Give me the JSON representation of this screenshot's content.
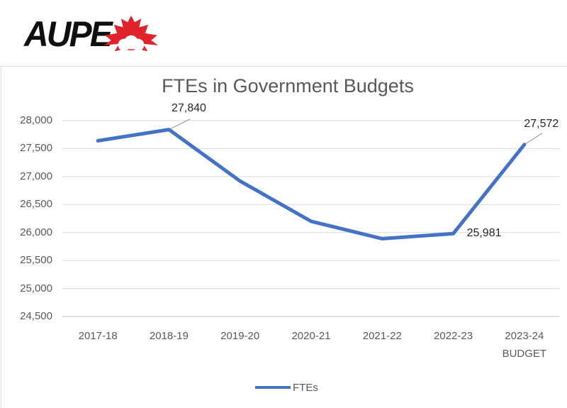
{
  "logo": {
    "text": "AUPE",
    "text_color": "#0f0f0f",
    "leaf_color": "#e0242b"
  },
  "chart_data": {
    "type": "line",
    "title": "FTEs in Government Budgets",
    "categories": [
      [
        "2017-18"
      ],
      [
        "2018-19"
      ],
      [
        "2019-20"
      ],
      [
        "2020-21"
      ],
      [
        "2021-22"
      ],
      [
        "2022-23"
      ],
      [
        "2023-24",
        "BUDGET"
      ]
    ],
    "series": [
      {
        "name": "FTEs",
        "values": [
          27640,
          27840,
          26920,
          26200,
          25890,
          25981,
          27572
        ]
      }
    ],
    "labeled_points": [
      {
        "index": 1,
        "label": "27,840"
      },
      {
        "index": 5,
        "label": "25,981"
      },
      {
        "index": 6,
        "label": "27,572"
      }
    ],
    "yticks": [
      {
        "value": 28000,
        "label": "28,000"
      },
      {
        "value": 27500,
        "label": "27,500"
      },
      {
        "value": 27000,
        "label": "27,000"
      },
      {
        "value": 26500,
        "label": "26,500"
      },
      {
        "value": 26000,
        "label": "26,000"
      },
      {
        "value": 25500,
        "label": "25,500"
      },
      {
        "value": 25000,
        "label": "25,000"
      },
      {
        "value": 24500,
        "label": "24,500"
      }
    ],
    "ylim": [
      24500,
      28000
    ],
    "grid": true,
    "legend": {
      "label": "FTEs",
      "position": "bottom"
    },
    "colors": {
      "line": "#4472C4",
      "title_text": "#595959",
      "axis_text": "#595959",
      "gridline": "#d9d9d9",
      "axis_line": "#bfbfbf",
      "data_label": "#262626",
      "leader_line": "#9e9e9e"
    }
  }
}
